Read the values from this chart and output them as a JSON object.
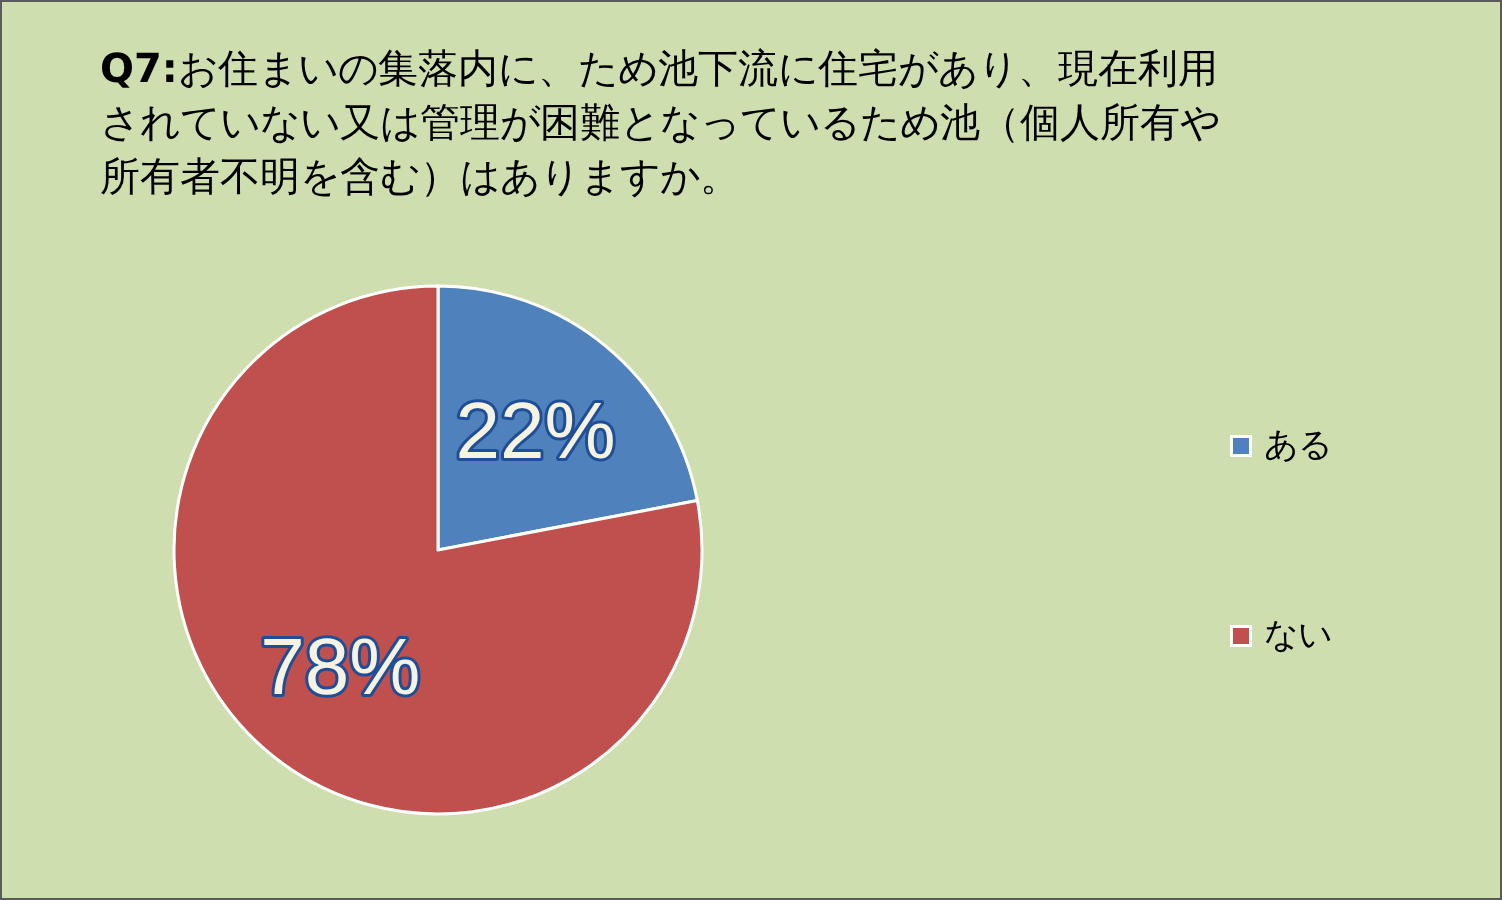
{
  "chart_data": {
    "type": "pie",
    "title": "Q7:お住まいの集落内に、ため池下流に住宅があり、現在利用されていない又は管理が困難となっているため池（個人所有や所有者不明を含む）はありますか。",
    "categories": [
      "ある",
      "ない"
    ],
    "values": [
      22,
      78
    ],
    "colors": [
      "#4f81bd",
      "#c0504d"
    ],
    "value_labels": [
      "22%",
      "78%"
    ],
    "legend": "right"
  }
}
